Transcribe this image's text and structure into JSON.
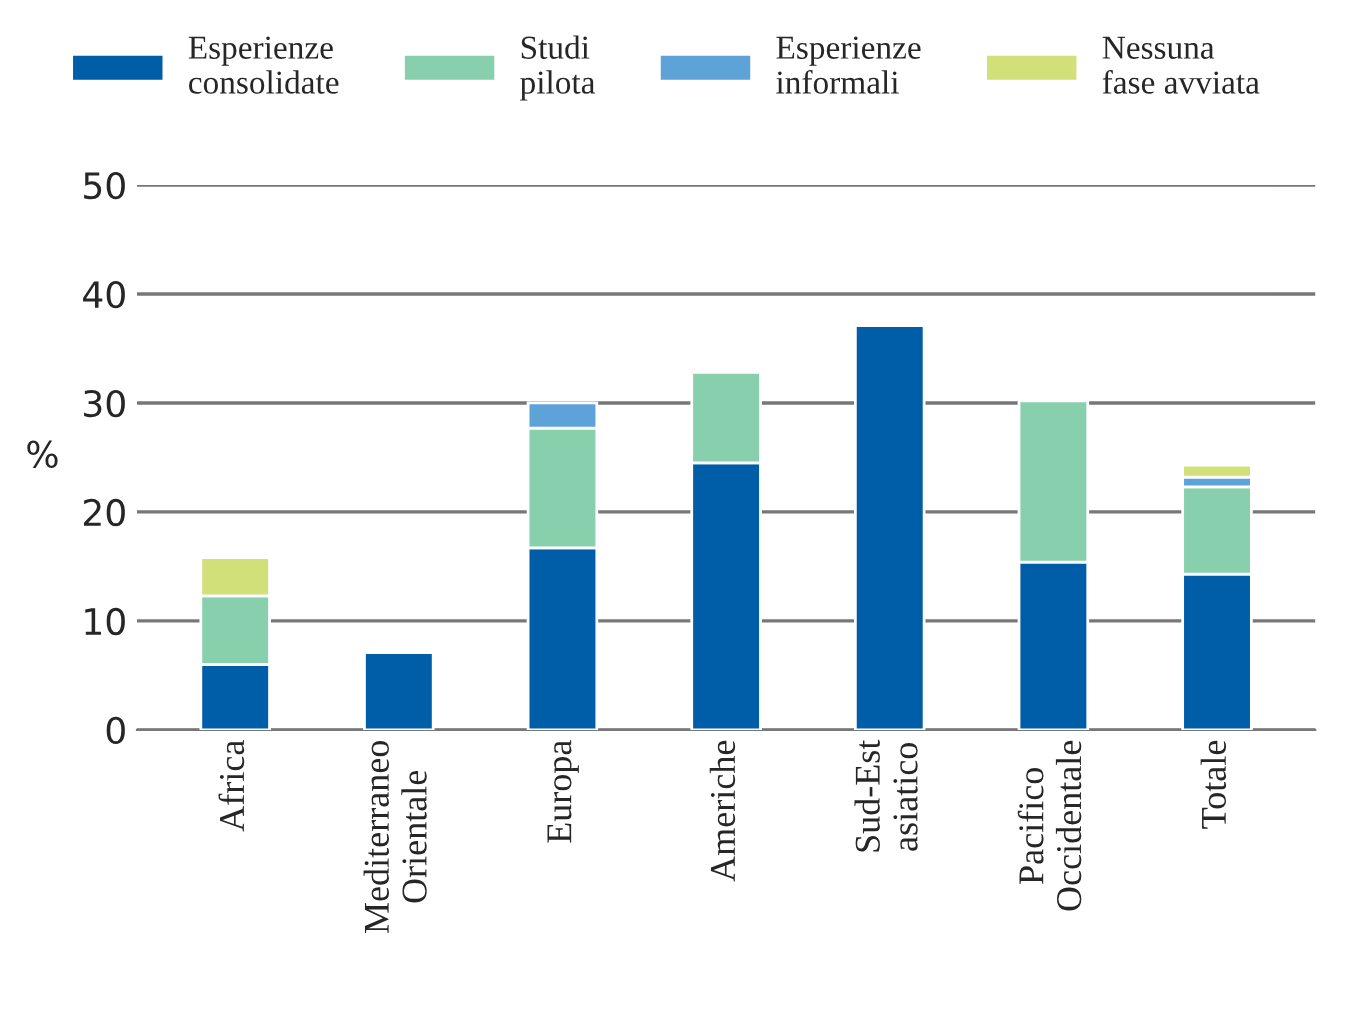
{
  "chart_data": {
    "type": "bar",
    "stacked": true,
    "ylabel": "%",
    "categories": [
      "Africa",
      "Mediterraneo\nOrientale",
      "Europa",
      "Americhe",
      "Sud-Est\nasiatico",
      "Pacifico\nOccidentale",
      "Totale"
    ],
    "series": [
      {
        "name": "Esperienze\nconsolidate",
        "color": "#005ea8",
        "values": [
          6.0,
          7.1,
          16.7,
          24.5,
          37.1,
          15.4,
          14.3
        ]
      },
      {
        "name": "Studi\npilota",
        "color": "#88cfae",
        "values": [
          6.3,
          null,
          11.0,
          8.3,
          null,
          14.8,
          8.0
        ]
      },
      {
        "name": "Esperienze\ninformali",
        "color": "#5ea3d8",
        "values": [
          null,
          null,
          2.3,
          null,
          null,
          null,
          0.9
        ]
      },
      {
        "name": "Nessuna\nfase avviata",
        "color": "#d2e07a",
        "values": [
          3.5,
          null,
          null,
          null,
          null,
          null,
          1.1
        ]
      }
    ],
    "ylim": [
      0,
      50
    ],
    "yticks": [
      0,
      10,
      20,
      30,
      40,
      50
    ],
    "grid": "y",
    "legend": "top"
  }
}
